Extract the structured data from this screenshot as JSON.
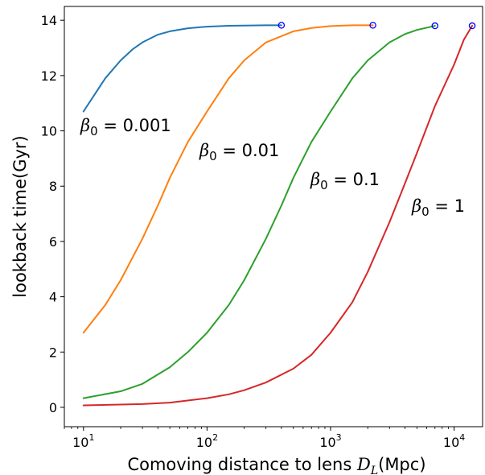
{
  "chart_data": {
    "type": "line",
    "xscale": "log",
    "xlim": [
      7,
      17000
    ],
    "ylim": [
      -0.7,
      14.5
    ],
    "xlabel": "Comoving distance to lens",
    "xlabel_symbol": "D",
    "xlabel_subscript": "L",
    "xlabel_unit": "(Mpc)",
    "ylabel": "lookback time(Gyr)",
    "xticks": [
      {
        "value": 10,
        "base": "10",
        "exp": "1"
      },
      {
        "value": 100,
        "base": "10",
        "exp": "2"
      },
      {
        "value": 1000,
        "base": "10",
        "exp": "3"
      },
      {
        "value": 10000,
        "base": "10",
        "exp": "4"
      }
    ],
    "yticks": [
      0,
      2,
      4,
      6,
      8,
      10,
      12,
      14
    ],
    "grid": false,
    "legend": "none",
    "series": [
      {
        "color": "#1f77b4",
        "label_symbol": "β",
        "label_subscript": "0",
        "label_value": " = 0.001",
        "x": [
          10,
          15,
          20,
          25,
          30,
          40,
          50,
          70,
          100,
          150,
          200,
          300,
          400
        ],
        "y": [
          10.7,
          11.9,
          12.55,
          12.95,
          13.2,
          13.48,
          13.6,
          13.71,
          13.77,
          13.8,
          13.81,
          13.82,
          13.82
        ],
        "end": [
          400,
          13.82
        ]
      },
      {
        "color": "#ff7f0e",
        "label_symbol": "β",
        "label_subscript": "0",
        "label_value": " = 0.01",
        "x": [
          10,
          15,
          20,
          30,
          40,
          50,
          70,
          100,
          150,
          200,
          300,
          500,
          700,
          1000,
          1500,
          2200
        ],
        "y": [
          2.7,
          3.7,
          4.6,
          6.1,
          7.3,
          8.3,
          9.6,
          10.7,
          11.9,
          12.55,
          13.2,
          13.6,
          13.72,
          13.79,
          13.82,
          13.82
        ],
        "end": [
          2200,
          13.82
        ]
      },
      {
        "color": "#2ca02c",
        "label_symbol": "β",
        "label_subscript": "0",
        "label_value": " = 0.1",
        "x": [
          10,
          20,
          30,
          50,
          70,
          100,
          150,
          200,
          300,
          400,
          500,
          700,
          1000,
          1500,
          2000,
          3000,
          4000,
          5000,
          7000
        ],
        "y": [
          0.33,
          0.58,
          0.85,
          1.45,
          2.0,
          2.7,
          3.7,
          4.6,
          6.1,
          7.3,
          8.3,
          9.6,
          10.7,
          11.9,
          12.55,
          13.2,
          13.5,
          13.65,
          13.8
        ],
        "end": [
          7000,
          13.8
        ]
      },
      {
        "color": "#d62728",
        "label_symbol": "β",
        "label_subscript": "0",
        "label_value": " = 1",
        "x": [
          10,
          30,
          50,
          100,
          150,
          200,
          300,
          500,
          700,
          1000,
          1500,
          2000,
          3000,
          4000,
          5000,
          7000,
          10000,
          12000,
          14000
        ],
        "y": [
          0.07,
          0.12,
          0.17,
          0.33,
          0.47,
          0.62,
          0.9,
          1.4,
          1.9,
          2.7,
          3.8,
          4.9,
          6.7,
          8.1,
          9.2,
          10.9,
          12.4,
          13.3,
          13.8
        ],
        "end": [
          14000,
          13.8
        ]
      }
    ]
  }
}
